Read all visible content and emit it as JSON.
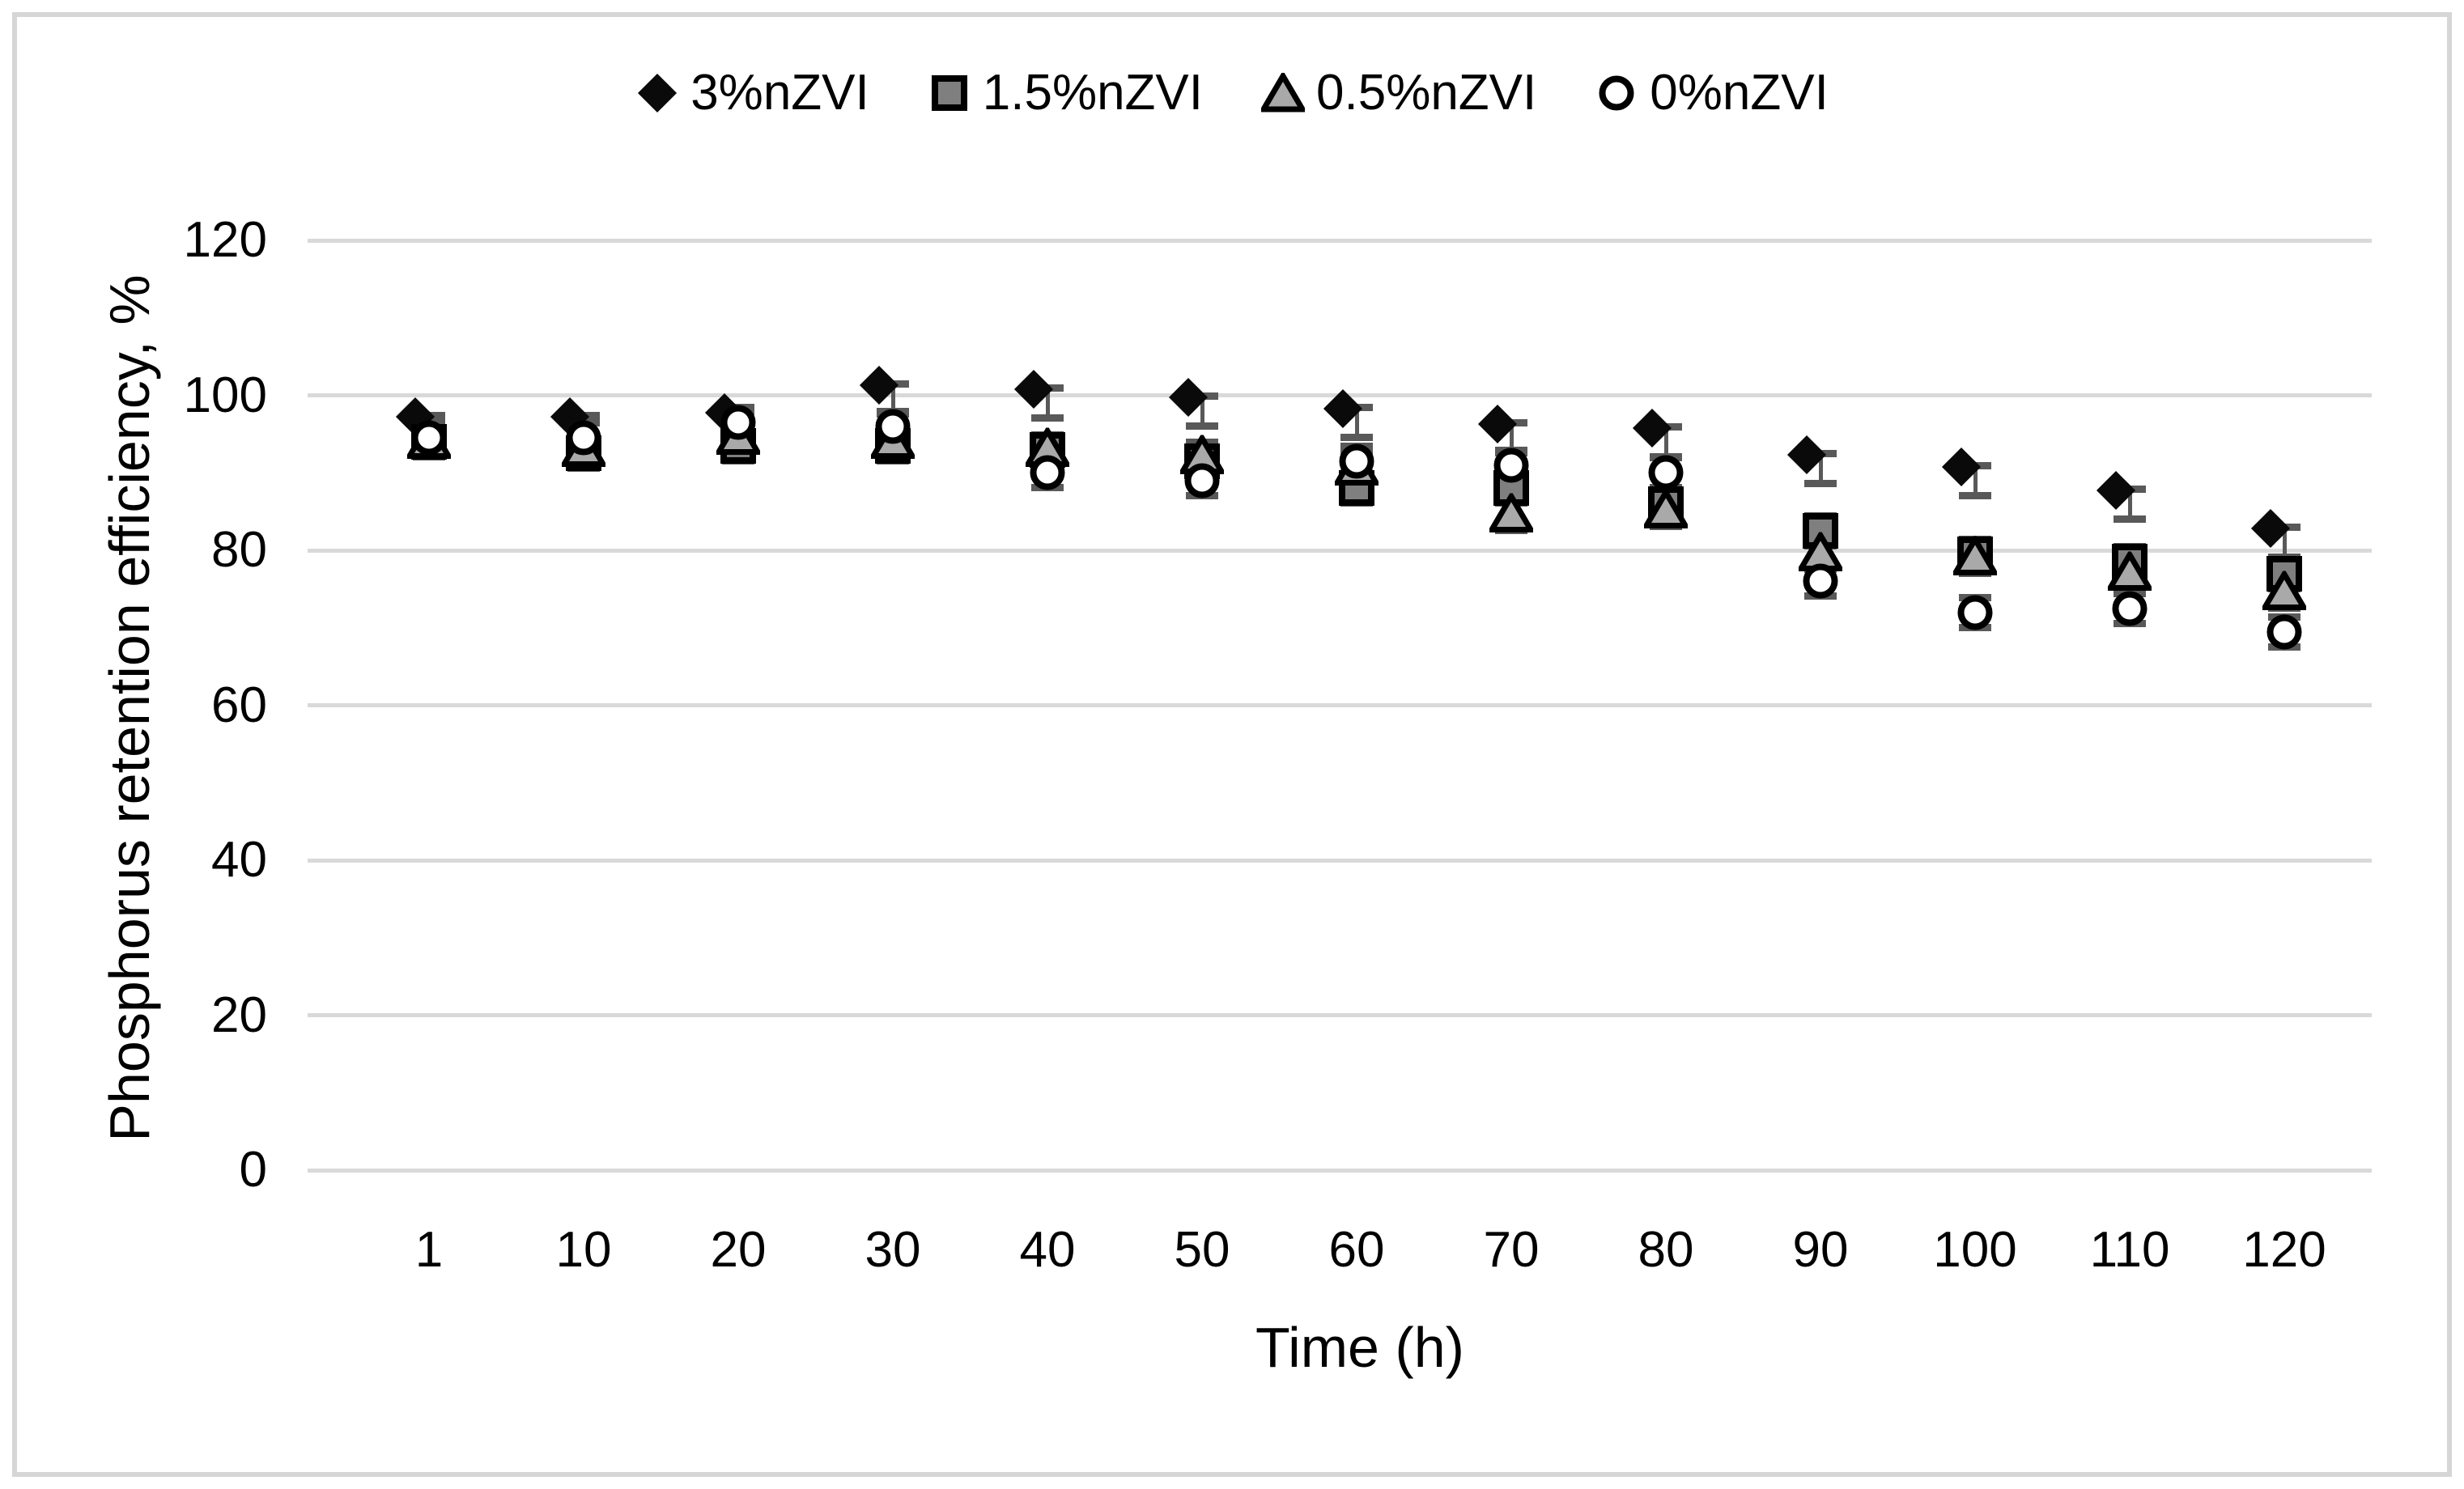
{
  "figure": {
    "background": "#ffffff",
    "border_color": "#d6d6d6"
  },
  "chart_data": {
    "type": "scatter",
    "title": "",
    "xlabel": "Time (h)",
    "ylabel": "Phosphorus retention efficiency, %",
    "x_categories": [
      "1",
      "10",
      "20",
      "30",
      "40",
      "50",
      "60",
      "70",
      "80",
      "90",
      "100",
      "110",
      "120"
    ],
    "y_ticks": [
      0,
      20,
      40,
      60,
      80,
      100,
      120
    ],
    "ylim": [
      0,
      120
    ],
    "grid": "horizontal-only",
    "legend_position": "top-center",
    "error_bar_plus_minus": 2.4,
    "series": [
      {
        "name": "3%nZVI",
        "marker": "diamond",
        "fill": "#0a0a0a",
        "values": [
          95.5,
          95.5,
          96,
          99.5,
          99,
          98,
          96.5,
          94.5,
          94,
          90.5,
          89,
          86,
          81
        ]
      },
      {
        "name": "1.5%nZVI",
        "marker": "square",
        "fill": "#7f7f7f",
        "values": [
          94,
          92.5,
          93.5,
          93.5,
          93,
          91.5,
          88,
          88,
          86,
          82.5,
          79.5,
          78.5,
          77
        ]
      },
      {
        "name": "0.5%nZVI",
        "marker": "triangle",
        "fill": "#a9a9a9",
        "values": [
          94,
          93,
          94.5,
          94,
          93,
          92,
          90.5,
          84.5,
          85,
          79.5,
          79,
          77,
          74.5
        ]
      },
      {
        "name": "0%nZVI",
        "marker": "circle",
        "fill": "#ffffff",
        "values": [
          94.5,
          94.5,
          96.5,
          96,
          90,
          89,
          91.5,
          91,
          90,
          76,
          72,
          72.5,
          69.5
        ]
      }
    ],
    "colors": {
      "gridline": "#d9d9d9",
      "error_bar": "#595959",
      "text": "#000000",
      "marker_border": "#000000"
    }
  }
}
